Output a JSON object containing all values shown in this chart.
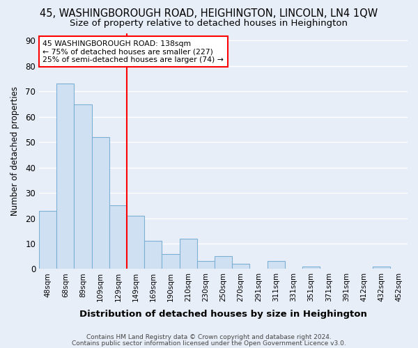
{
  "title": "45, WASHINGBOROUGH ROAD, HEIGHINGTON, LINCOLN, LN4 1QW",
  "subtitle": "Size of property relative to detached houses in Heighington",
  "xlabel": "Distribution of detached houses by size in Heighington",
  "ylabel": "Number of detached properties",
  "categories": [
    "48sqm",
    "68sqm",
    "89sqm",
    "109sqm",
    "129sqm",
    "149sqm",
    "169sqm",
    "190sqm",
    "210sqm",
    "230sqm",
    "250sqm",
    "270sqm",
    "291sqm",
    "311sqm",
    "331sqm",
    "351sqm",
    "371sqm",
    "391sqm",
    "412sqm",
    "432sqm",
    "452sqm"
  ],
  "values": [
    23,
    73,
    65,
    52,
    25,
    21,
    11,
    6,
    12,
    3,
    5,
    2,
    0,
    3,
    0,
    1,
    0,
    0,
    0,
    1,
    0
  ],
  "bar_color": "#cfe0f3",
  "bar_edge_color": "#7bafd4",
  "ylim": [
    0,
    93
  ],
  "yticks": [
    0,
    10,
    20,
    30,
    40,
    50,
    60,
    70,
    80,
    90
  ],
  "red_line_x": 4.5,
  "annotation_text": "45 WASHINGBOROUGH ROAD: 138sqm\n← 75% of detached houses are smaller (227)\n25% of semi-detached houses are larger (74) →",
  "footer_line1": "Contains HM Land Registry data © Crown copyright and database right 2024.",
  "footer_line2": "Contains public sector information licensed under the Open Government Licence v3.0.",
  "background_color": "#e8eef8",
  "grid_color": "#ffffff",
  "title_fontsize": 10.5,
  "subtitle_fontsize": 9.5,
  "bar_width": 1.0
}
